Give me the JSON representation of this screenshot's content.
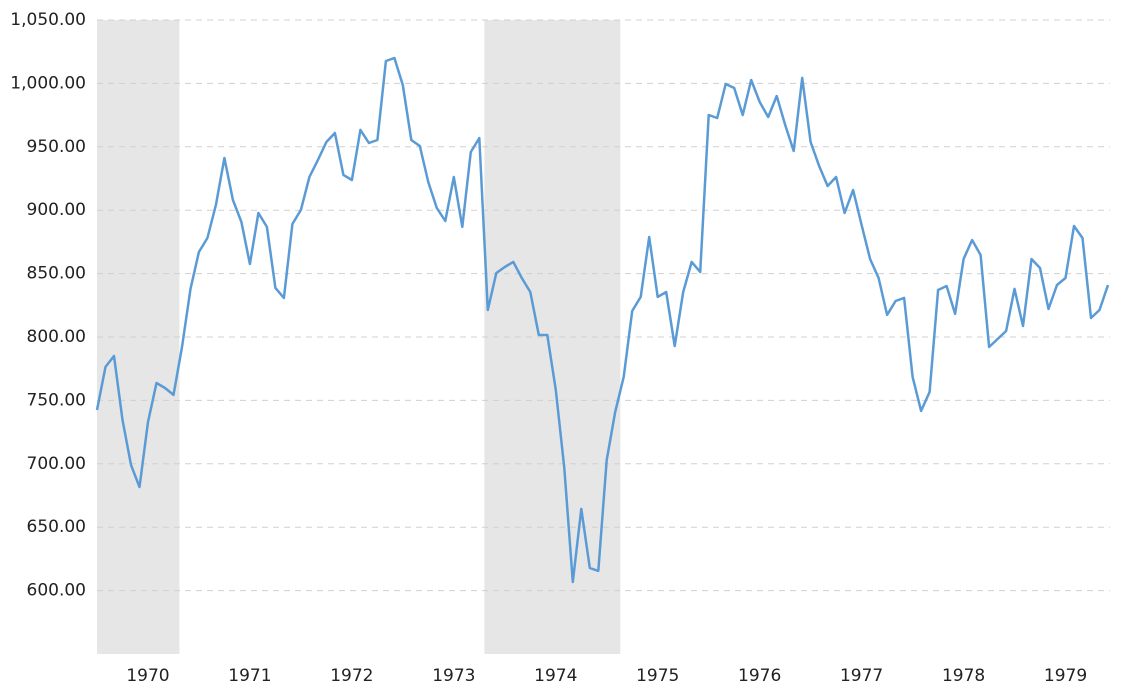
{
  "chart_data": {
    "type": "line",
    "color": "#5b9bd5",
    "shade_color": "#e6e6e6",
    "shaded_ranges": [
      [
        0,
        9.7
      ],
      [
        45.6,
        61.6
      ]
    ],
    "grid": true,
    "ylim": [
      550,
      1050
    ],
    "yticks": [
      {
        "value": 600,
        "label": "600.00"
      },
      {
        "value": 650,
        "label": "650.00"
      },
      {
        "value": 700,
        "label": "700.00"
      },
      {
        "value": 750,
        "label": "750.00"
      },
      {
        "value": 800,
        "label": "800.00"
      },
      {
        "value": 850,
        "label": "850.00"
      },
      {
        "value": 900,
        "label": "900.00"
      },
      {
        "value": 950,
        "label": "950.00"
      },
      {
        "value": 1000,
        "label": "1,000.00"
      },
      {
        "value": 1050,
        "label": "1,050.00"
      }
    ],
    "categories": [
      null,
      null,
      null,
      null,
      null,
      null,
      "1970",
      null,
      null,
      null,
      null,
      null,
      null,
      null,
      null,
      null,
      null,
      null,
      "1971",
      null,
      null,
      null,
      null,
      null,
      null,
      null,
      null,
      null,
      null,
      null,
      "1972",
      null,
      null,
      null,
      null,
      null,
      null,
      null,
      null,
      null,
      null,
      null,
      "1973",
      null,
      null,
      null,
      null,
      null,
      null,
      null,
      null,
      null,
      null,
      null,
      "1974",
      null,
      null,
      null,
      null,
      null,
      null,
      null,
      null,
      null,
      null,
      null,
      "1975",
      null,
      null,
      null,
      null,
      null,
      null,
      null,
      null,
      null,
      null,
      null,
      "1976",
      null,
      null,
      null,
      null,
      null,
      null,
      null,
      null,
      null,
      null,
      null,
      "1977",
      null,
      null,
      null,
      null,
      null,
      null,
      null,
      null,
      null,
      null,
      null,
      "1978",
      null,
      null,
      null,
      null,
      null,
      null,
      null,
      null,
      null,
      null,
      null,
      "1979",
      null,
      null,
      null,
      null,
      null
    ],
    "values": [
      742.4,
      776.4,
      785.0,
      734.6,
      699.1,
      681.7,
      733.0,
      763.7,
      759.8,
      754.3,
      792.1,
      837.9,
      867.0,
      878.1,
      904.1,
      941.2,
      908.1,
      890.7,
      857.6,
      897.8,
      886.8,
      838.7,
      830.8,
      889.1,
      900.2,
      926.2,
      939.6,
      953.8,
      960.9,
      927.8,
      923.8,
      963.3,
      953.0,
      955.4,
      1017.7,
      1020.0,
      998.7,
      955.4,
      950.6,
      922.2,
      901.7,
      891.5,
      926.2,
      886.8,
      945.9,
      956.9,
      821.3,
      850.5,
      855.2,
      859.2,
      846.5,
      835.5,
      801.6,
      801.6,
      758.2,
      696.7,
      606.8,
      664.4,
      617.8,
      615.5,
      703.0,
      740.9,
      768.5,
      820.5,
      831.6,
      878.9,
      831.6,
      835.5,
      792.9,
      835.5,
      859.2,
      851.3,
      975.1,
      972.7,
      999.5,
      996.4,
      975.1,
      1002.7,
      985.3,
      973.5,
      990.1,
      967.2,
      946.7,
      1004.3,
      953.8,
      934.9,
      919.1,
      926.2,
      897.8,
      915.9,
      888.3,
      861.5,
      846.5,
      817.4,
      828.4,
      830.8,
      768.5,
      741.7,
      756.6,
      837.1,
      840.2,
      818.2,
      861.5,
      876.5,
      864.7,
      792.1,
      798.4,
      804.7,
      837.9,
      808.7,
      861.5,
      854.4,
      822.1,
      841.0,
      846.5,
      887.5,
      878.1,
      815.0,
      821.3,
      841.0
    ]
  }
}
